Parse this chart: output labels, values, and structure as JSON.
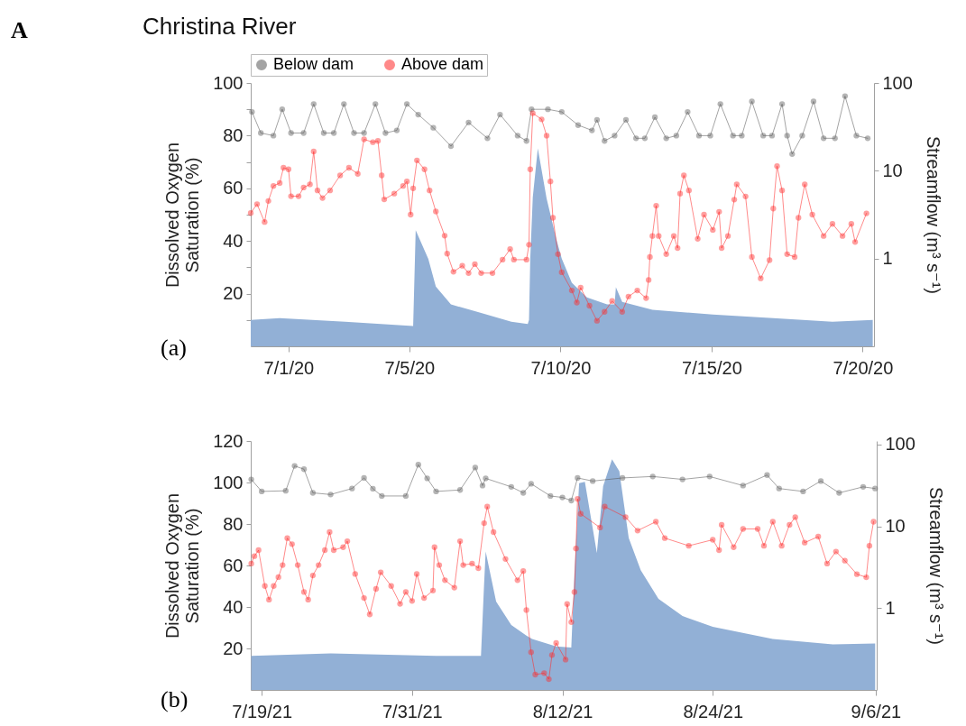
{
  "chart_data": [
    {
      "type": "line",
      "title": "Christina River",
      "ylabel": "Dissolved Oxygen Saturation (%)",
      "y2label": "Streamflow (m³ s⁻¹)",
      "annotations": [
        "A",
        "(a)"
      ],
      "xlim": [
        "--06-29T18:00",
        "--07-20T09:00"
      ],
      "xticks": [
        {
          "value": "--07-01",
          "label": "7/1/20"
        },
        {
          "value": "--07-05",
          "label": "7/5/20"
        },
        {
          "value": "--07-10",
          "label": "7/10/20"
        },
        {
          "value": "--07-15",
          "label": "7/15/20"
        },
        {
          "value": "--07-20",
          "label": "7/20/20"
        }
      ],
      "ylim": [
        0,
        100
      ],
      "yticks": [
        {
          "value": 10,
          "label": null
        },
        20,
        {
          "value": 30,
          "label": null
        },
        40,
        {
          "value": 50,
          "label": null
        },
        60,
        {
          "value": 70,
          "label": null
        },
        80,
        {
          "value": 90,
          "label": null
        },
        100
      ],
      "y2lim": [
        0.1,
        100
      ],
      "y2ticks": [
        1,
        10,
        100
      ],
      "log": "y2",
      "legend": "top",
      "marker": "circle",
      "line_style": "solid",
      "series": [
        {
          "type": "area",
          "axis": "y2",
          "marker": "none",
          "color": "#92b0d6",
          "x": [
            "--06-29T18:00",
            "--06-30T17:00",
            "--07-02T21:00",
            "--07-05T03:00",
            "--07-05T05:00",
            "--07-05T15:00",
            "--07-05T21:00",
            "--07-06T09:00",
            "--07-07T09:00",
            "--07-08T09:00",
            "--07-08T22:00",
            "--07-08T23:00",
            "--07-09T00:00",
            "--07-09T02:00",
            "--07-09T06:00",
            "--07-09T13:00",
            "--07-09T21:00",
            "--07-10T01:00",
            "--07-10T09:00",
            "--07-10T21:00",
            "--07-11T13:00",
            "--07-11T19:00",
            "--07-11T20:00",
            "--07-12T01:00",
            "--07-13T01:00",
            "--07-15T01:00",
            "--07-17T01:00",
            "--07-19T00:00",
            "--07-20T08:00"
          ],
          "values": [
            0.2,
            0.21,
            0.19,
            0.17,
            2.1,
            0.99,
            0.48,
            0.3,
            0.24,
            0.19,
            0.18,
            0.2,
            1.0,
            5,
            18,
            4.8,
            1.6,
            1.0,
            0.53,
            0.36,
            0.3,
            0.3,
            0.47,
            0.32,
            0.26,
            0.23,
            0.21,
            0.19,
            0.2
          ]
        },
        {
          "name": "Below dam",
          "color": "#5a5a5a",
          "x": [
            "--06-29T19:00",
            "--06-30T02:00",
            "--06-30T12:00",
            "--06-30T19:00",
            "--07-01T02:00",
            "--07-01T12:00",
            "--07-01T20:00",
            "--07-02T04:00",
            "--07-02T12:00",
            "--07-02T20:00",
            "--07-03T04:00",
            "--07-03T12:00",
            "--07-03T21:00",
            "--07-04T05:00",
            "--07-04T14:00",
            "--07-04T22:00",
            "--07-05T07:00",
            "--07-05T19:00",
            "--07-06T09:00",
            "--07-06T23:00",
            "--07-07T14:00",
            "--07-08T00:00",
            "--07-08T14:00",
            "--07-08T21:00",
            "--07-09T01:00",
            "--07-09T14:00",
            "--07-10T01:00",
            "--07-10T14:00",
            "--07-11T01:00",
            "--07-11T05:00",
            "--07-11T11:00",
            "--07-11T19:00",
            "--07-12T04:00",
            "--07-12T12:00",
            "--07-12T19:00",
            "--07-13T03:00",
            "--07-13T12:00",
            "--07-13T20:00",
            "--07-14T05:00",
            "--07-14T14:00",
            "--07-14T23:00",
            "--07-15T07:00",
            "--07-15T17:00",
            "--07-16T00:00",
            "--07-16T08:00",
            "--07-16T17:00",
            "--07-17T00:00",
            "--07-17T08:00",
            "--07-17T12:00",
            "--07-17T16:00",
            "--07-18T00:00",
            "--07-18T09:00",
            "--07-18T17:00",
            "--07-19T02:00",
            "--07-19T10:00",
            "--07-19T19:00",
            "--07-20T04:00"
          ],
          "values": [
            89,
            81,
            80,
            90,
            81,
            81,
            92,
            81,
            81,
            92,
            81,
            81,
            92,
            81,
            82,
            92,
            88,
            83,
            76,
            85,
            79,
            88,
            80,
            78,
            90,
            90,
            89,
            84,
            82,
            86,
            78,
            80,
            86,
            79,
            79,
            87,
            79,
            80,
            89,
            80,
            80,
            92,
            80,
            80,
            93,
            80,
            80,
            92,
            80,
            73,
            80,
            93,
            79,
            79,
            95,
            80,
            79
          ]
        },
        {
          "name": "Above dam",
          "color": "#ff2a2a",
          "x": [
            "--06-29T18:00",
            "--06-29T23:00",
            "--06-30T05:00",
            "--06-30T08:00",
            "--06-30T12:00",
            "--06-30T17:00",
            "--06-30T20:00",
            "--07-01T00:00",
            "--07-01T02:00",
            "--07-01T08:00",
            "--07-01T12:00",
            "--07-01T17:00",
            "--07-01T20:00",
            "--07-01T23:00",
            "--07-02T03:00",
            "--07-02T09:00",
            "--07-02T17:00",
            "--07-03T00:00",
            "--07-03T07:00",
            "--07-03T12:00",
            "--07-03T19:00",
            "--07-03T23:00",
            "--07-04T02:00",
            "--07-04T04:00",
            "--07-04T12:00",
            "--07-04T19:00",
            "--07-04T22:00",
            "--07-05T01:00",
            "--07-05T03:00",
            "--07-05T06:00",
            "--07-05T12:00",
            "--07-05T16:00",
            "--07-05T21:00",
            "--07-06T04:00",
            "--07-06T06:00",
            "--07-06T11:00",
            "--07-06T18:00",
            "--07-06T23:00",
            "--07-07T04:00",
            "--07-07T09:00",
            "--07-07T18:00",
            "--07-08T02:00",
            "--07-08T08:00",
            "--07-08T11:00",
            "--07-08T21:00",
            "--07-08T23:00",
            "--07-09T00:00",
            "--07-09T02:00",
            "--07-09T09:00",
            "--07-09T13:00",
            "--07-09T16:00",
            "--07-09T18:00",
            "--07-09T22:00",
            "--07-10T01:00",
            "--07-10T09:00",
            "--07-10T13:00",
            "--07-10T16:00",
            "--07-10T23:00",
            "--07-11T05:00",
            "--07-11T11:00",
            "--07-11T17:00",
            "--07-12T01:00",
            "--07-12T06:00",
            "--07-12T13:00",
            "--07-12T20:00",
            "--07-12T22:00",
            "--07-12T23:00",
            "--07-13T01:00",
            "--07-13T04:00",
            "--07-13T06:00",
            "--07-13T12:00",
            "--07-13T18:00",
            "--07-13T21:00",
            "--07-13T23:00",
            "--07-14T02:00",
            "--07-14T06:00",
            "--07-14T13:00",
            "--07-14T18:00",
            "--07-15T01:00",
            "--07-15T06:00",
            "--07-15T08:00",
            "--07-15T13:00",
            "--07-15T18:00",
            "--07-15T20:00",
            "--07-16T03:00",
            "--07-16T08:00",
            "--07-16T15:00",
            "--07-16T22:00",
            "--07-17T01:00",
            "--07-17T04:00",
            "--07-17T08:00",
            "--07-17T12:00",
            "--07-17T18:00",
            "--07-17T21:00",
            "--07-18T02:00",
            "--07-18T08:00",
            "--07-18T17:00",
            "--07-19T00:00",
            "--07-19T08:00",
            "--07-19T15:00",
            "--07-19T18:00",
            "--07-20T03:00"
          ],
          "values": [
            50.6,
            54,
            47.2,
            55.2,
            60.9,
            62,
            67.8,
            67.2,
            57,
            57,
            60.3,
            61.5,
            74,
            59.2,
            56.3,
            59.2,
            64.9,
            67.8,
            65.5,
            78.6,
            77.5,
            78,
            64.9,
            55.8,
            58,
            60.9,
            62.6,
            50,
            60,
            70.6,
            67.2,
            59.2,
            51.2,
            42,
            35.2,
            28.3,
            30.6,
            27.8,
            31.2,
            27.8,
            27.8,
            32.9,
            36.9,
            32.9,
            32.9,
            38.6,
            67.2,
            88.5,
            86.2,
            80,
            62.6,
            48.8,
            35,
            28.1,
            21.2,
            16.6,
            22.3,
            15.4,
            9.7,
            13.1,
            17.2,
            13.1,
            18.9,
            21.2,
            18.3,
            25.2,
            33.9,
            41.9,
            53.4,
            41.9,
            35,
            41.9,
            37.3,
            58,
            64.9,
            59.2,
            40.8,
            50,
            44.2,
            51.1,
            37.3,
            41.9,
            55.7,
            61.5,
            56.9,
            33.9,
            25.8,
            32.7,
            52.3,
            68.4,
            59.2,
            35,
            33.9,
            48.8,
            61.5,
            50,
            41.9,
            46.5,
            41.9,
            46.5,
            39.6,
            50.5
          ]
        }
      ]
    },
    {
      "type": "line",
      "ylabel": "Dissolved Oxygen Saturation (%)",
      "y2label": "Streamflow (m³ s⁻¹)",
      "annotations": [
        "(b)"
      ],
      "xlim": [
        "--07-18T03:00",
        "--09-06T02:00"
      ],
      "xticks": [
        {
          "value": "--07-19",
          "label": "7/19/21"
        },
        {
          "value": "--07-31",
          "label": "7/31/21"
        },
        {
          "value": "--08-12",
          "label": "8/12/21"
        },
        {
          "value": "--08-24",
          "label": "8/24/21"
        },
        {
          "value": "--09-06",
          "label": "9/6/21"
        }
      ],
      "ylim": [
        0,
        120
      ],
      "yticks": [
        20,
        40,
        60,
        80,
        100,
        120
      ],
      "y2lim": [
        0.1,
        110
      ],
      "y2ticks": [
        1,
        10,
        100
      ],
      "log": "y2",
      "marker": "circle",
      "line_style": "solid",
      "series": [
        {
          "type": "area",
          "axis": "y2",
          "marker": "none",
          "color": "#92b0d6",
          "x": [
            "--07-18T04:00",
            "--07-24T12:00",
            "--08-01T22:00",
            "--08-05T12:00",
            "--08-05T18:00",
            "--08-05T21:00",
            "--08-06T17:00",
            "--08-07T22:00",
            "--08-09T03:00",
            "--08-09T14:00",
            "--08-11T12:00",
            "--08-12T17:00",
            "--08-12T23:00",
            "--08-13T08:00",
            "--08-13T19:00",
            "--08-14T18:00",
            "--08-15T06:00",
            "--08-15T23:00",
            "--08-16T13:00",
            "--08-17T07:00",
            "--08-18T06:00",
            "--08-19T16:00",
            "--08-21T14:00",
            "--08-24T00:00",
            "--08-28T19:00",
            "--09-02T14:00",
            "--09-05T23:00"
          ],
          "values": [
            0.26,
            0.28,
            0.26,
            0.26,
            2.0,
            4.9,
            1.2,
            0.62,
            0.46,
            0.42,
            0.34,
            0.33,
            2.6,
            33.6,
            35,
            4.7,
            31,
            66,
            47,
            7.2,
            2.9,
            1.3,
            0.8,
            0.59,
            0.42,
            0.36,
            0.37
          ]
        },
        {
          "color": "#5a5a5a",
          "x": [
            "--07-18T04:00",
            "--07-19T00:00",
            "--07-20T22:00",
            "--07-21T15:00",
            "--07-22T09:00",
            "--07-23T02:00",
            "--07-24T12:00",
            "--07-26T05:00",
            "--07-27T04:00",
            "--07-27T21:00",
            "--07-28T14:00",
            "--07-30T12:00",
            "--07-31T12:00",
            "--08-01T05:00",
            "--08-01T22:00",
            "--08-03T20:00",
            "--08-05T01:00",
            "--08-05T15:00",
            "--08-05T21:00",
            "--08-07T22:00",
            "--08-08T21:00",
            "--08-09T12:00",
            "--08-11T01:00",
            "--08-12T00:00",
            "--08-12T17:00",
            "--08-13T05:00",
            "--08-14T10:00",
            "--08-16T19:00",
            "--08-19T05:00",
            "--08-21T14:00",
            "--08-23T18:00",
            "--08-26T10:00",
            "--08-28T08:00",
            "--08-29T07:00",
            "--08-31T05:00",
            "--09-01T15:00",
            "--09-03T02:00",
            "--09-05T00:00",
            "--09-05T23:00"
          ],
          "values": [
            101.5,
            95.7,
            96,
            108,
            106.4,
            95,
            94.2,
            97.1,
            102.2,
            97,
            93.5,
            93.5,
            108.6,
            102,
            95.7,
            96.4,
            107.2,
            98.5,
            102,
            97.9,
            95,
            99.4,
            93.5,
            92.8,
            91.3,
            102.2,
            100.7,
            102.2,
            102.9,
            101.5,
            102.9,
            98.5,
            103.6,
            97.1,
            95.7,
            100.7,
            95,
            97.9,
            97.1
          ]
        },
        {
          "color": "#ff2a2a",
          "x": [
            "--07-18T04:00",
            "--07-18T10:00",
            "--07-18T18:00",
            "--07-19T06:00",
            "--07-19T14:00",
            "--07-19T23:00",
            "--07-20T08:00",
            "--07-20T16:00",
            "--07-21T01:00",
            "--07-21T10:00",
            "--07-21T21:00",
            "--07-22T09:00",
            "--07-22T17:00",
            "--07-23T02:00",
            "--07-23T13:00",
            "--07-24T01:00",
            "--07-24T10:00",
            "--07-24T18:00",
            "--07-25T12:00",
            "--07-25T20:00",
            "--07-26T11:00",
            "--07-27T04:00",
            "--07-27T15:00",
            "--07-28T03:00",
            "--07-28T12:00",
            "--07-29T08:00",
            "--07-30T01:00",
            "--07-30T12:00",
            "--07-31T00:00",
            "--07-31T09:00",
            "--07-31T23:00",
            "--08-01T16:00",
            "--08-01T19:00",
            "--08-02T04:00",
            "--08-02T15:00",
            "--08-03T09:00",
            "--08-03T20:00",
            "--08-04T02:00",
            "--08-04T19:00",
            "--08-05T07:00",
            "--08-05T18:00",
            "--08-06T00:00",
            "--08-06T12:00",
            "--08-07T11:00",
            "--08-08T10:00",
            "--08-08T21:00",
            "--08-09T03:00",
            "--08-09T12:00",
            "--08-09T20:00",
            "--08-10T13:00",
            "--08-10T22:00",
            "--08-11T04:00",
            "--08-11T12:00",
            "--08-12T06:00",
            "--08-12T09:00",
            "--08-12T17:00",
            "--08-12T23:00",
            "--08-13T02:00",
            "--08-13T05:00",
            "--08-13T11:00",
            "--08-15T00:00",
            "--08-15T09:00",
            "--08-17T01:00",
            "--08-18T00:00",
            "--08-19T11:00",
            "--08-20T04:00",
            "--08-22T02:00",
            "--08-24T00:00",
            "--08-24T12:00",
            "--08-24T17:00",
            "--08-25T16:00",
            "--08-26T10:00",
            "--08-27T14:00",
            "--08-28T02:00",
            "--08-28T19:00",
            "--08-29T12:00",
            "--08-30T03:00",
            "--08-30T14:00",
            "--08-31T08:00",
            "--09-01T10:00",
            "--09-02T03:00",
            "--09-02T20:00",
            "--09-03T13:00",
            "--09-04T12:00",
            "--09-05T06:00",
            "--09-05T12:00",
            "--09-05T20:00"
          ],
          "values": [
            60.9,
            64.5,
            67.4,
            50.1,
            43.5,
            50.1,
            54.4,
            60.2,
            73.2,
            70.3,
            60.2,
            47.2,
            43.5,
            55.2,
            60.2,
            67.4,
            76.1,
            67.4,
            68.8,
            71.7,
            55.9,
            44.3,
            36.4,
            48.7,
            56.7,
            50.1,
            41.5,
            47.2,
            42.9,
            55.9,
            44.3,
            47.9,
            68.8,
            60.2,
            52.9,
            49.3,
            71.7,
            60.2,
            60.9,
            58.7,
            80.4,
            88.4,
            76.1,
            63.1,
            52.9,
            57.3,
            38.5,
            18.2,
            7.4,
            8.1,
            5.2,
            16.8,
            22.6,
            14.6,
            41.4,
            32.7,
            47.2,
            68.2,
            92.1,
            84.9,
            78.3,
            88.4,
            83.3,
            76.8,
            81.1,
            73.2,
            69.5,
            72.4,
            67.4,
            79.6,
            68.8,
            77.6,
            77.6,
            69.5,
            81.1,
            69.5,
            79.6,
            83.3,
            71,
            73.9,
            60.9,
            66.7,
            62.3,
            55.8,
            54.3,
            69.5,
            81.1
          ]
        }
      ]
    }
  ]
}
